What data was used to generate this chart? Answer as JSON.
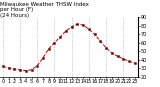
{
  "title": "Milwaukee Weather THSW Index\nper Hour (F)\n(24 Hours)",
  "hours": [
    0,
    1,
    2,
    3,
    4,
    5,
    6,
    7,
    8,
    9,
    10,
    11,
    12,
    13,
    14,
    15,
    16,
    17,
    18,
    19,
    20,
    21,
    22,
    23
  ],
  "values": [
    32,
    30,
    29,
    28,
    27,
    28,
    33,
    42,
    53,
    60,
    67,
    74,
    79,
    82,
    81,
    76,
    70,
    62,
    54,
    48,
    44,
    41,
    38,
    36
  ],
  "line_color": "#cc0000",
  "marker_color": "#660000",
  "bg_color": "#ffffff",
  "plot_bg": "#ffffff",
  "ylim": [
    20,
    90
  ],
  "yticks": [
    20,
    30,
    40,
    50,
    60,
    70,
    80,
    90
  ],
  "ytick_labels": [
    "20",
    "30",
    "40",
    "50",
    "60",
    "70",
    "80",
    "90"
  ],
  "grid_color": "#999999",
  "grid_hours": [
    0,
    3,
    6,
    9,
    12,
    15,
    18,
    21
  ],
  "title_fontsize": 4.0,
  "tick_fontsize": 3.5
}
